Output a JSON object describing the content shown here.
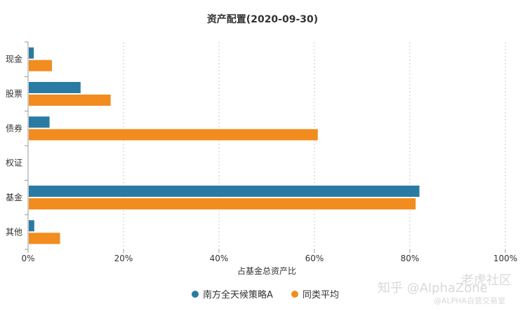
{
  "chart_data": {
    "type": "bar",
    "orientation": "horizontal",
    "title": "资产配置(2020-09-30)",
    "xlabel": "占基金总资产比",
    "ylabel": "",
    "xlim": [
      0,
      100
    ],
    "x_ticks": [
      "0%",
      "20%",
      "40%",
      "60%",
      "80%",
      "100%"
    ],
    "categories": [
      "现金",
      "股票",
      "债券",
      "权证",
      "基金",
      "其他"
    ],
    "series": [
      {
        "name": "南方全天候策略A",
        "color": "#2a7ba3",
        "values": [
          1.2,
          11.0,
          4.5,
          0,
          82.0,
          1.3
        ]
      },
      {
        "name": "同类平均",
        "color": "#f28c1e",
        "values": [
          5.0,
          17.3,
          60.7,
          0,
          81.2,
          6.7
        ]
      }
    ],
    "grid": "vertical-dashed",
    "legend_position": "bottom-center"
  },
  "watermark": {
    "line1": "知乎 @AlphaZone",
    "line2": "@ALPHA自营交易室",
    "line3": "老虎社区"
  }
}
